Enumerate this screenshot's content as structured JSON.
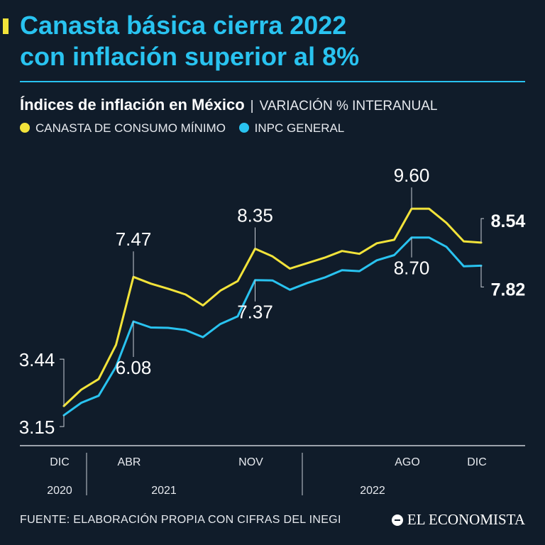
{
  "header": {
    "title_line1": "Canasta básica cierra 2022",
    "title_line2": "con inflación superior al 8%"
  },
  "colors": {
    "background": "#101c2a",
    "title": "#29c3f0",
    "canasta": "#f2e33a",
    "inpc": "#29c3f0",
    "accent": "#f2e33a"
  },
  "chart_data": {
    "type": "line",
    "title": "Índices de inflación en México",
    "subtitle": "VARIACIÓN % INTERANUAL",
    "x": [
      "2020-12",
      "2021-01",
      "2021-02",
      "2021-03",
      "2021-04",
      "2021-05",
      "2021-06",
      "2021-07",
      "2021-08",
      "2021-09",
      "2021-10",
      "2021-11",
      "2021-12",
      "2022-01",
      "2022-02",
      "2022-03",
      "2022-04",
      "2022-05",
      "2022-06",
      "2022-07",
      "2022-08",
      "2022-09",
      "2022-10",
      "2022-11",
      "2022-12"
    ],
    "series": [
      {
        "name": "CANASTA DE CONSUMO MÍNIMO",
        "color": "#f2e33a",
        "values": [
          3.44,
          3.95,
          4.28,
          5.35,
          7.47,
          7.26,
          7.1,
          6.92,
          6.58,
          7.04,
          7.34,
          8.35,
          8.11,
          7.73,
          7.9,
          8.07,
          8.28,
          8.19,
          8.52,
          8.63,
          9.6,
          9.6,
          9.16,
          8.58,
          8.54
        ]
      },
      {
        "name": "INPC GENERAL",
        "color": "#29c3f0",
        "values": [
          3.15,
          3.54,
          3.76,
          4.67,
          6.08,
          5.89,
          5.88,
          5.81,
          5.59,
          6.0,
          6.24,
          7.37,
          7.36,
          7.07,
          7.28,
          7.45,
          7.68,
          7.65,
          7.99,
          8.15,
          8.7,
          8.7,
          8.41,
          7.8,
          7.82
        ]
      }
    ],
    "annotations": [
      {
        "text": "3.44",
        "series": 0,
        "index": 0
      },
      {
        "text": "3.15",
        "series": 1,
        "index": 0
      },
      {
        "text": "7.47",
        "series": 0,
        "index": 4
      },
      {
        "text": "6.08",
        "series": 1,
        "index": 4
      },
      {
        "text": "8.35",
        "series": 0,
        "index": 11
      },
      {
        "text": "7.37",
        "series": 1,
        "index": 11
      },
      {
        "text": "9.60",
        "series": 0,
        "index": 20
      },
      {
        "text": "8.70",
        "series": 1,
        "index": 20
      },
      {
        "text": "8.54",
        "series": 0,
        "index": 24
      },
      {
        "text": "7.82",
        "series": 1,
        "index": 24
      }
    ],
    "month_ticks": [
      {
        "label": "DIC",
        "index": 0
      },
      {
        "label": "ABR",
        "index": 4
      },
      {
        "label": "NOV",
        "index": 11
      },
      {
        "label": "AGO",
        "index": 20
      },
      {
        "label": "DIC",
        "index": 24
      }
    ],
    "year_labels": [
      {
        "label": "2020",
        "index": 0
      },
      {
        "label": "2021",
        "index": 6
      },
      {
        "label": "2022",
        "index": 18
      }
    ],
    "ylim": [
      2.6,
      10.4
    ],
    "grid": false
  },
  "footer": {
    "source": "FUENTE: ELABORACIÓN PROPIA CON CIFRAS DEL INEGI",
    "brand": "EL ECONOMISTA",
    "brand_icon": "el-economista-logo-icon"
  }
}
